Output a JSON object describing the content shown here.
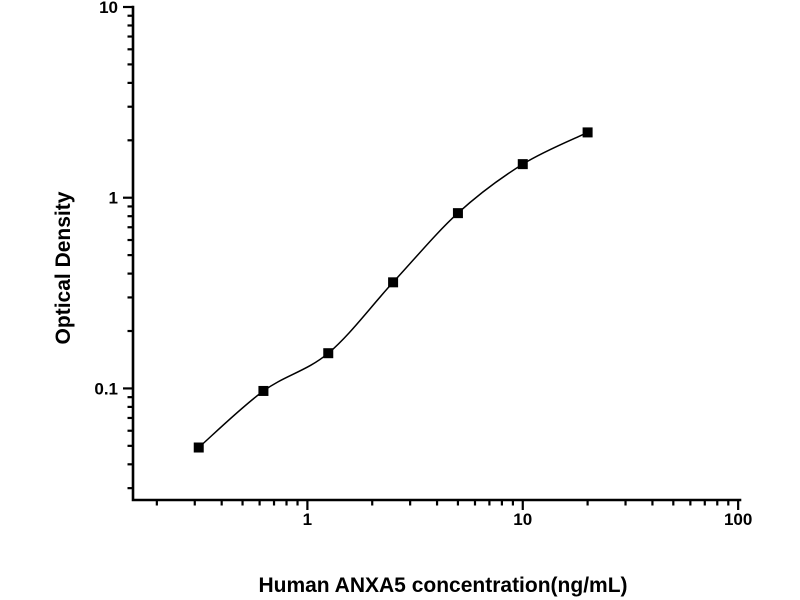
{
  "figure": {
    "background_color": "#ffffff",
    "ink_color": "#000000"
  },
  "chart_data": {
    "type": "scatter",
    "title": "",
    "xlabel": "Human ANXA5 concentration(ng/mL)",
    "ylabel": "Optical Density",
    "x_scale": "log",
    "y_scale": "log",
    "xlim": [
      0.155,
      102
    ],
    "ylim": [
      0.026,
      10
    ],
    "grid": false,
    "legend": false,
    "x_ticks": [
      {
        "value": 1,
        "label": "1"
      },
      {
        "value": 10,
        "label": "10"
      },
      {
        "value": 100,
        "label": "100"
      }
    ],
    "y_ticks": [
      {
        "value": 0.1,
        "label": "0.1"
      },
      {
        "value": 1,
        "label": "1"
      },
      {
        "value": 10,
        "label": "10"
      }
    ],
    "series": [
      {
        "marker": "filled-square",
        "line": "smooth-fit-curve",
        "color": "#000000",
        "x": [
          0.313,
          0.625,
          1.25,
          2.5,
          5,
          10,
          20
        ],
        "y": [
          0.049,
          0.097,
          0.153,
          0.36,
          0.83,
          1.5,
          2.2
        ]
      }
    ]
  }
}
